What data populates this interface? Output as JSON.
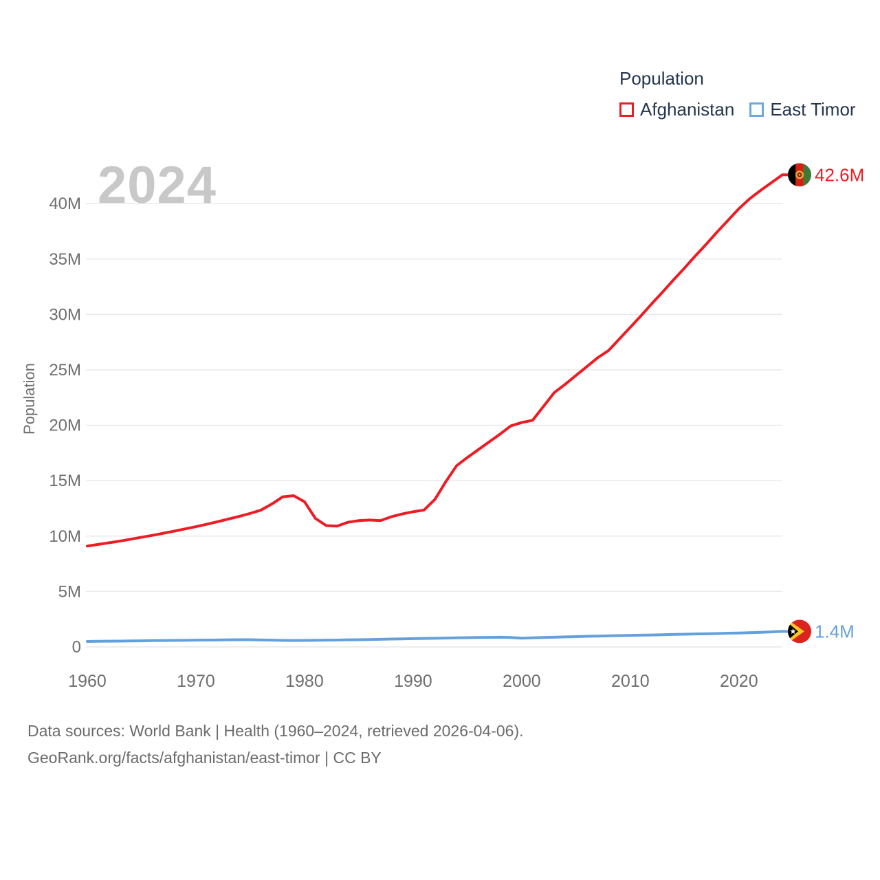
{
  "legend": {
    "title": "Population",
    "items": [
      {
        "label": "Afghanistan",
        "color": "#ed1c24"
      },
      {
        "label": "East Timor",
        "color": "#6fa8dc"
      }
    ]
  },
  "watermark": "2024",
  "caption": {
    "line1": "Data sources: World Bank | Health (1960–2024, retrieved 2026-04-06).",
    "line2": "GeoRank.org/facts/afghanistan/east-timor | CC BY"
  },
  "chart_data": {
    "type": "line",
    "title": "Population",
    "xlabel": "",
    "ylabel": "Population",
    "y_unit": "millions",
    "x_range": [
      1960,
      2024
    ],
    "ylim": [
      0,
      43.5
    ],
    "grid": "horizontal-only",
    "legend_position": "top-right",
    "x_ticks": [
      1960,
      1970,
      1980,
      1990,
      2000,
      2010,
      2020
    ],
    "y_ticks": [
      {
        "value": 0,
        "label": "0"
      },
      {
        "value": 5,
        "label": "5M"
      },
      {
        "value": 10,
        "label": "10M"
      },
      {
        "value": 15,
        "label": "15M"
      },
      {
        "value": 20,
        "label": "20M"
      },
      {
        "value": 25,
        "label": "25M"
      },
      {
        "value": 30,
        "label": "30M"
      },
      {
        "value": 35,
        "label": "35M"
      },
      {
        "value": 40,
        "label": "40M"
      }
    ],
    "series": [
      {
        "name": "Afghanistan",
        "color": "#ed1c24",
        "end_label": "42.6M",
        "flag": "afghanistan",
        "start_year": 1960,
        "values": [
          9.1,
          9.25,
          9.4,
          9.55,
          9.72,
          9.9,
          10.07,
          10.26,
          10.45,
          10.65,
          10.85,
          11.07,
          11.3,
          11.54,
          11.78,
          12.05,
          12.35,
          12.9,
          13.55,
          13.65,
          13.1,
          11.6,
          10.95,
          10.9,
          11.25,
          11.4,
          11.45,
          11.4,
          11.75,
          12.0,
          12.2,
          12.35,
          13.3,
          14.9,
          16.35,
          17.1,
          17.8,
          18.5,
          19.2,
          19.95,
          20.25,
          20.45,
          21.7,
          22.95,
          23.7,
          24.5,
          25.3,
          26.1,
          26.75,
          27.8,
          28.85,
          29.9,
          31.0,
          32.05,
          33.15,
          34.2,
          35.3,
          36.35,
          37.45,
          38.5,
          39.55,
          40.45,
          41.2,
          41.9,
          42.6
        ]
      },
      {
        "name": "East Timor",
        "color": "#64a0dc",
        "end_label": "1.4M",
        "flag": "east-timor",
        "start_year": 1960,
        "values": [
          0.5,
          0.51,
          0.52,
          0.53,
          0.54,
          0.55,
          0.57,
          0.58,
          0.59,
          0.6,
          0.61,
          0.62,
          0.63,
          0.64,
          0.65,
          0.65,
          0.63,
          0.61,
          0.59,
          0.58,
          0.59,
          0.6,
          0.61,
          0.62,
          0.64,
          0.65,
          0.67,
          0.69,
          0.71,
          0.73,
          0.75,
          0.77,
          0.78,
          0.8,
          0.82,
          0.84,
          0.85,
          0.86,
          0.88,
          0.85,
          0.79,
          0.82,
          0.85,
          0.88,
          0.91,
          0.93,
          0.96,
          0.98,
          1.0,
          1.02,
          1.04,
          1.06,
          1.08,
          1.1,
          1.13,
          1.15,
          1.17,
          1.19,
          1.21,
          1.24,
          1.26,
          1.29,
          1.32,
          1.36,
          1.4
        ]
      }
    ]
  }
}
